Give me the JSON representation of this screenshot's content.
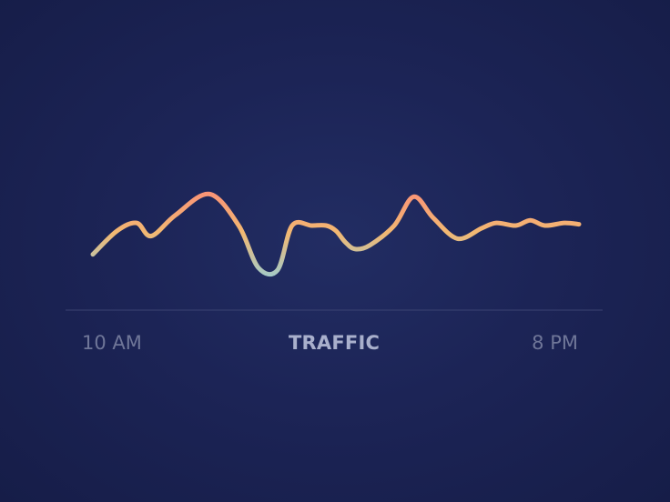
{
  "chart_data": {
    "type": "line",
    "title": "TRAFFIC",
    "xlabel": "",
    "ylabel": "",
    "x_tick_labels": [
      "10 AM",
      "8 PM"
    ],
    "x": [
      0,
      0.5,
      0.9,
      1.2,
      1.7,
      2.4,
      3.0,
      3.4,
      3.8,
      4.1,
      4.5,
      4.8,
      5.0,
      5.2,
      5.4,
      5.7,
      6.2,
      6.6,
      7.0,
      7.5,
      8.0,
      8.3,
      8.7,
      9.0,
      9.3,
      9.7,
      10.0
    ],
    "values": [
      28,
      46,
      52,
      42,
      58,
      74,
      50,
      18,
      16,
      50,
      50,
      50,
      46,
      37,
      32,
      35,
      50,
      72,
      56,
      40,
      48,
      52,
      50,
      54,
      50,
      52,
      51
    ],
    "ylim": [
      0,
      100
    ],
    "grid": false,
    "legend": "none",
    "colors": {
      "line_high": "#ff7a7a",
      "line_mid": "#f2b872",
      "line_low": "#8ecfe0",
      "baseline": "#3b4372"
    }
  }
}
